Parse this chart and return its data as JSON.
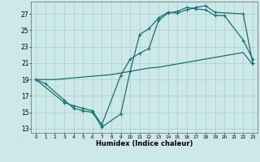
{
  "xlabel": "Humidex (Indice chaleur)",
  "background_color": "#cce8e8",
  "grid_color": "#aacfcf",
  "line_color": "#1a7070",
  "xlim": [
    -0.5,
    23.5
  ],
  "ylim": [
    12.5,
    28.5
  ],
  "xticks": [
    0,
    1,
    2,
    3,
    4,
    5,
    6,
    7,
    8,
    9,
    10,
    11,
    12,
    13,
    14,
    15,
    16,
    17,
    18,
    19,
    20,
    21,
    22,
    23
  ],
  "yticks": [
    13,
    15,
    17,
    19,
    21,
    23,
    25,
    27
  ],
  "line1_x": [
    0,
    1,
    3,
    4,
    5,
    6,
    7,
    9,
    10,
    11,
    12,
    13,
    14,
    15,
    16,
    17,
    18,
    19,
    22,
    23
  ],
  "line1_y": [
    19,
    18.5,
    16.5,
    15.5,
    15.2,
    15.0,
    13.2,
    14.8,
    20.0,
    24.5,
    25.2,
    26.5,
    27.2,
    27.1,
    27.5,
    27.8,
    28.0,
    27.2,
    27.0,
    21.0
  ],
  "line2_x": [
    0,
    3,
    4,
    5,
    6,
    7,
    9,
    10,
    11,
    12,
    13,
    14,
    15,
    16,
    17,
    18,
    19,
    20,
    22,
    23
  ],
  "line2_y": [
    19,
    16.2,
    15.8,
    15.5,
    15.2,
    13.5,
    19.5,
    21.5,
    22.2,
    22.8,
    26.2,
    27.1,
    27.3,
    27.8,
    27.6,
    27.5,
    26.8,
    26.8,
    23.8,
    21.5
  ],
  "line3_x": [
    0,
    1,
    2,
    3,
    4,
    5,
    6,
    7,
    8,
    9,
    10,
    11,
    12,
    13,
    14,
    15,
    16,
    17,
    18,
    19,
    20,
    21,
    22,
    23
  ],
  "line3_y": [
    19,
    19.0,
    19.0,
    19.1,
    19.2,
    19.3,
    19.4,
    19.5,
    19.6,
    19.8,
    20.0,
    20.2,
    20.4,
    20.5,
    20.7,
    20.9,
    21.1,
    21.3,
    21.5,
    21.7,
    21.9,
    22.1,
    22.3,
    20.8
  ]
}
